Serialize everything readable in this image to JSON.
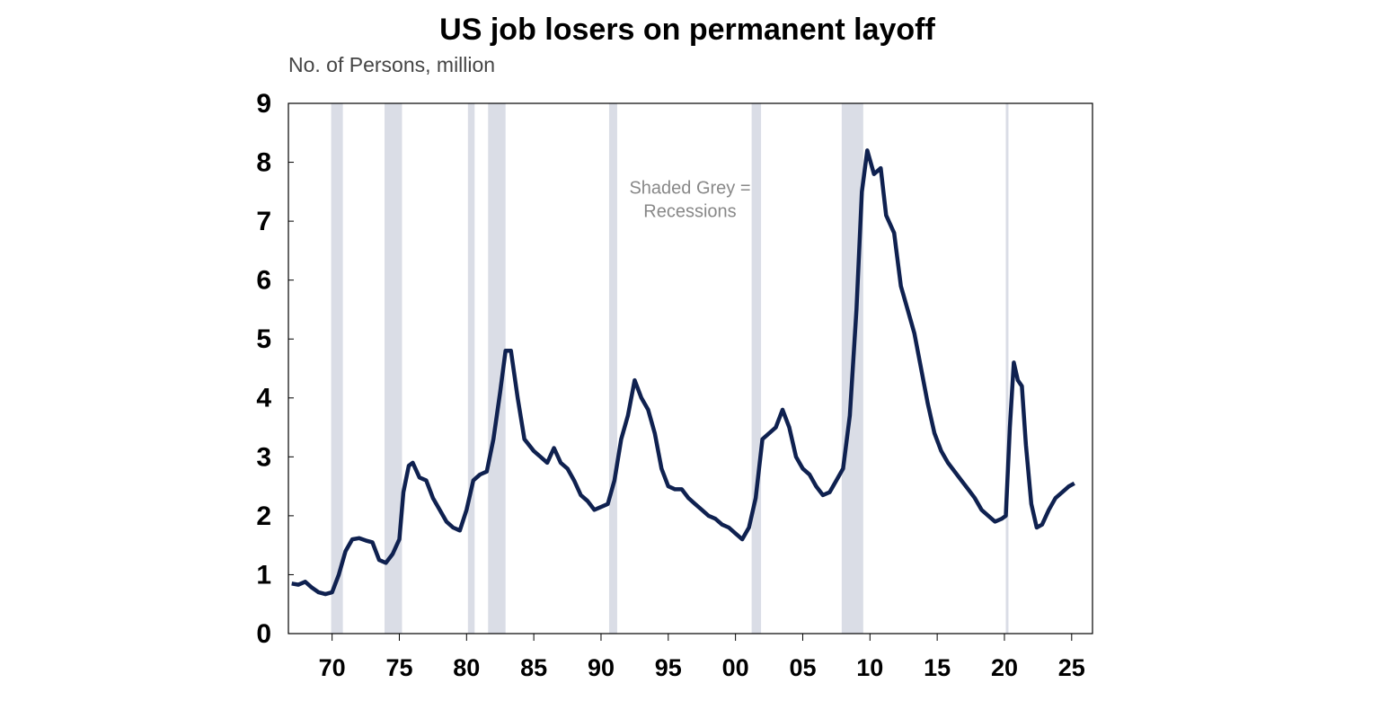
{
  "chart_data": {
    "type": "line",
    "title": "US job losers on permanent layoff",
    "subtitle": "No. of Persons, million",
    "annotation": [
      "Shaded Grey =",
      "Recessions"
    ],
    "xlim": [
      1966.75,
      2026.55
    ],
    "ylim": [
      0,
      9
    ],
    "yticks": [
      0,
      1,
      2,
      3,
      4,
      5,
      6,
      7,
      8,
      9
    ],
    "xticks": [
      {
        "value": 1970,
        "label": "70"
      },
      {
        "value": 1975,
        "label": "75"
      },
      {
        "value": 1980,
        "label": "80"
      },
      {
        "value": 1985,
        "label": "85"
      },
      {
        "value": 1990,
        "label": "90"
      },
      {
        "value": 1995,
        "label": "95"
      },
      {
        "value": 2000,
        "label": "00"
      },
      {
        "value": 2005,
        "label": "05"
      },
      {
        "value": 2010,
        "label": "10"
      },
      {
        "value": 2015,
        "label": "15"
      },
      {
        "value": 2020,
        "label": "20"
      },
      {
        "value": 2025,
        "label": "25"
      }
    ],
    "recessions": [
      [
        1969.93,
        1970.8
      ],
      [
        1973.9,
        1975.2
      ],
      [
        1980.1,
        1980.6
      ],
      [
        1981.6,
        1982.9
      ],
      [
        1990.6,
        1991.2
      ],
      [
        2001.2,
        2001.9
      ],
      [
        2007.9,
        2009.5
      ],
      [
        2020.1,
        2020.3
      ]
    ],
    "recession_color": "#dadde6",
    "series": [
      {
        "name": "Job losers on permanent layoff",
        "color": "#0f2150",
        "x": [
          1967.0,
          1967.5,
          1968.0,
          1968.5,
          1969.0,
          1969.5,
          1970.0,
          1970.5,
          1971.0,
          1971.5,
          1972.0,
          1972.5,
          1973.0,
          1973.5,
          1974.0,
          1974.5,
          1975.0,
          1975.3,
          1975.7,
          1976.0,
          1976.5,
          1977.0,
          1977.5,
          1978.0,
          1978.5,
          1979.0,
          1979.5,
          1980.0,
          1980.5,
          1981.0,
          1981.5,
          1982.0,
          1982.5,
          1982.9,
          1983.3,
          1983.8,
          1984.3,
          1985.0,
          1985.5,
          1986.0,
          1986.5,
          1987.0,
          1987.5,
          1988.0,
          1988.5,
          1989.0,
          1989.5,
          1990.0,
          1990.5,
          1991.0,
          1991.5,
          1992.0,
          1992.5,
          1993.0,
          1993.5,
          1994.0,
          1994.5,
          1995.0,
          1995.5,
          1996.0,
          1996.5,
          1997.0,
          1997.5,
          1998.0,
          1998.5,
          1999.0,
          1999.5,
          2000.0,
          2000.5,
          2001.0,
          2001.5,
          2002.0,
          2002.5,
          2003.0,
          2003.5,
          2004.0,
          2004.5,
          2005.0,
          2005.5,
          2006.0,
          2006.5,
          2007.0,
          2007.5,
          2008.0,
          2008.5,
          2009.0,
          2009.4,
          2009.8,
          2010.3,
          2010.8,
          2011.2,
          2011.8,
          2012.3,
          2012.8,
          2013.3,
          2013.8,
          2014.3,
          2014.8,
          2015.3,
          2015.8,
          2016.3,
          2016.8,
          2017.3,
          2017.8,
          2018.3,
          2018.8,
          2019.3,
          2019.8,
          2020.1,
          2020.4,
          2020.7,
          2021.0,
          2021.3,
          2021.6,
          2022.0,
          2022.4,
          2022.8,
          2023.3,
          2023.8,
          2024.3,
          2024.8,
          2025.2
        ],
        "values": [
          0.85,
          0.83,
          0.88,
          0.78,
          0.7,
          0.67,
          0.7,
          1.0,
          1.4,
          1.6,
          1.62,
          1.58,
          1.55,
          1.25,
          1.2,
          1.35,
          1.6,
          2.4,
          2.85,
          2.9,
          2.65,
          2.6,
          2.3,
          2.1,
          1.9,
          1.8,
          1.75,
          2.1,
          2.6,
          2.7,
          2.75,
          3.3,
          4.1,
          4.8,
          4.8,
          4.0,
          3.3,
          3.1,
          3.0,
          2.9,
          3.15,
          2.9,
          2.8,
          2.6,
          2.35,
          2.25,
          2.1,
          2.15,
          2.2,
          2.6,
          3.3,
          3.7,
          4.3,
          4.0,
          3.8,
          3.4,
          2.8,
          2.5,
          2.45,
          2.45,
          2.3,
          2.2,
          2.1,
          2.0,
          1.95,
          1.85,
          1.8,
          1.7,
          1.6,
          1.8,
          2.3,
          3.3,
          3.4,
          3.5,
          3.8,
          3.5,
          3.0,
          2.8,
          2.7,
          2.5,
          2.35,
          2.4,
          2.6,
          2.8,
          3.7,
          5.5,
          7.5,
          8.2,
          7.8,
          7.9,
          7.1,
          6.8,
          5.9,
          5.5,
          5.1,
          4.5,
          3.9,
          3.4,
          3.1,
          2.9,
          2.75,
          2.6,
          2.45,
          2.3,
          2.1,
          2.0,
          1.9,
          1.95,
          2.0,
          3.5,
          4.6,
          4.3,
          4.2,
          3.2,
          2.2,
          1.8,
          1.85,
          2.1,
          2.3,
          2.4,
          2.5,
          2.55
        ]
      }
    ]
  }
}
